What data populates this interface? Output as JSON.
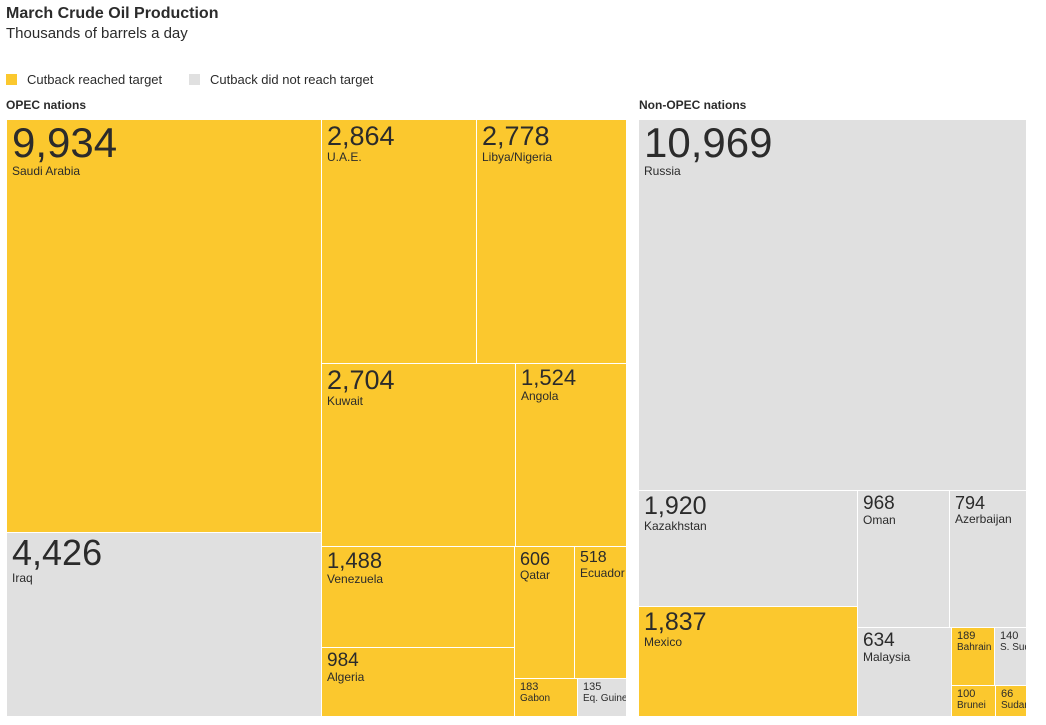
{
  "title": "March Crude Oil Production",
  "subtitle": "Thousands of barrels a day",
  "legend": {
    "reached": "Cutback reached target",
    "not_reached": "Cutback did not reach target"
  },
  "colors": {
    "reached": "#fbc82e",
    "not_reached": "#e0e0e0"
  },
  "groups": {
    "opec": "OPEC nations",
    "non_opec": "Non-OPEC nations"
  },
  "chart_data": {
    "type": "treemap",
    "title": "March Crude Oil Production",
    "subtitle": "Thousands of barrels a day",
    "legend": [
      "Cutback reached target",
      "Cutback did not reach target"
    ],
    "groups": [
      {
        "name": "OPEC nations",
        "items": [
          {
            "label": "Saudi Arabia",
            "value": 9934,
            "display": "9,934",
            "reached": true
          },
          {
            "label": "Iraq",
            "value": 4426,
            "display": "4,426",
            "reached": false
          },
          {
            "label": "U.A.E.",
            "value": 2864,
            "display": "2,864",
            "reached": true
          },
          {
            "label": "Libya/Nigeria",
            "value": 2778,
            "display": "2,778",
            "reached": true
          },
          {
            "label": "Kuwait",
            "value": 2704,
            "display": "2,704",
            "reached": true
          },
          {
            "label": "Angola",
            "value": 1524,
            "display": "1,524",
            "reached": true
          },
          {
            "label": "Venezuela",
            "value": 1488,
            "display": "1,488",
            "reached": true
          },
          {
            "label": "Algeria",
            "value": 984,
            "display": "984",
            "reached": true
          },
          {
            "label": "Qatar",
            "value": 606,
            "display": "606",
            "reached": true
          },
          {
            "label": "Ecuador",
            "value": 518,
            "display": "518",
            "reached": true
          },
          {
            "label": "Gabon",
            "value": 183,
            "display": "183",
            "reached": true
          },
          {
            "label": "Eq. Guinea",
            "value": 135,
            "display": "135",
            "reached": false
          }
        ]
      },
      {
        "name": "Non-OPEC nations",
        "items": [
          {
            "label": "Russia",
            "value": 10969,
            "display": "10,969",
            "reached": false
          },
          {
            "label": "Kazakhstan",
            "value": 1920,
            "display": "1,920",
            "reached": false
          },
          {
            "label": "Mexico",
            "value": 1837,
            "display": "1,837",
            "reached": true
          },
          {
            "label": "Oman",
            "value": 968,
            "display": "968",
            "reached": false
          },
          {
            "label": "Azerbaijan",
            "value": 794,
            "display": "794",
            "reached": false
          },
          {
            "label": "Malaysia",
            "value": 634,
            "display": "634",
            "reached": false
          },
          {
            "label": "Bahrain",
            "value": 189,
            "display": "189",
            "reached": true
          },
          {
            "label": "S. Sudan",
            "value": 140,
            "display": "140",
            "reached": false
          },
          {
            "label": "Brunei",
            "value": 100,
            "display": "100",
            "reached": true
          },
          {
            "label": "Sudan",
            "value": 66,
            "display": "66",
            "reached": true
          }
        ]
      }
    ]
  }
}
